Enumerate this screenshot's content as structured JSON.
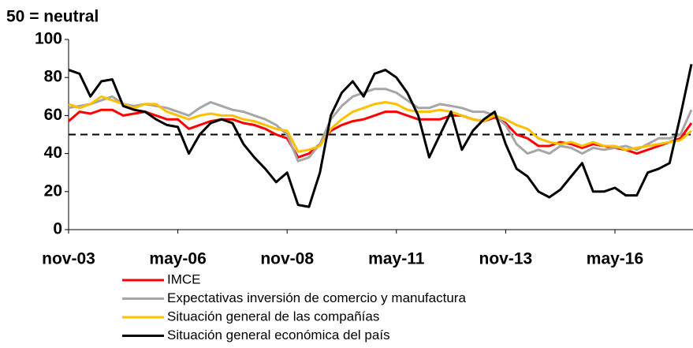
{
  "chart_data": {
    "type": "line",
    "title": "50 = neutral",
    "categories": [
      "nov-03",
      null,
      null,
      null,
      null,
      null,
      null,
      null,
      null,
      null,
      "may-06",
      null,
      null,
      null,
      null,
      null,
      null,
      null,
      null,
      null,
      "nov-08",
      null,
      null,
      null,
      null,
      null,
      null,
      null,
      null,
      null,
      "may-11",
      null,
      null,
      null,
      null,
      null,
      null,
      null,
      null,
      null,
      "nov-13",
      null,
      null,
      null,
      null,
      null,
      null,
      null,
      null,
      null,
      "may-16",
      null,
      null,
      null,
      null,
      null,
      null,
      null
    ],
    "series": [
      {
        "name": "IMCE",
        "color": "#ff0000",
        "values": [
          57,
          62,
          61,
          63,
          63,
          60,
          61,
          62,
          60,
          58,
          58,
          53,
          55,
          57,
          58,
          58,
          56,
          55,
          53,
          50,
          48,
          38,
          40,
          45,
          52,
          55,
          57,
          58,
          60,
          62,
          62,
          60,
          58,
          58,
          58,
          60,
          60,
          58,
          57,
          59,
          56,
          50,
          48,
          44,
          44,
          46,
          45,
          43,
          45,
          44,
          43,
          42,
          40,
          42,
          44,
          46,
          48,
          56
        ]
      },
      {
        "name": "Expectativas inversión de comercio y manufactura",
        "color": "#a6a6a6",
        "values": [
          64,
          65,
          66,
          68,
          70,
          66,
          65,
          66,
          65,
          64,
          62,
          60,
          64,
          67,
          65,
          63,
          62,
          60,
          58,
          55,
          50,
          36,
          38,
          45,
          58,
          65,
          70,
          72,
          74,
          74,
          72,
          68,
          64,
          64,
          66,
          65,
          64,
          62,
          62,
          60,
          55,
          45,
          40,
          42,
          40,
          44,
          43,
          40,
          43,
          42,
          43,
          44,
          42,
          45,
          48,
          48,
          50,
          63
        ]
      },
      {
        "name": "Situación general de las compañías",
        "color": "#ffc000",
        "values": [
          66,
          64,
          66,
          70,
          68,
          66,
          64,
          66,
          66,
          62,
          60,
          58,
          60,
          61,
          60,
          60,
          58,
          57,
          55,
          53,
          52,
          41,
          42,
          44,
          53,
          58,
          62,
          64,
          66,
          67,
          66,
          63,
          62,
          62,
          63,
          62,
          60,
          58,
          57,
          60,
          58,
          55,
          53,
          48,
          46,
          45,
          46,
          44,
          46,
          44,
          44,
          42,
          43,
          44,
          45,
          46,
          47,
          52
        ]
      },
      {
        "name": "Situación general económica del país",
        "color": "#000000",
        "values": [
          84,
          82,
          70,
          78,
          79,
          65,
          63,
          62,
          58,
          55,
          54,
          40,
          50,
          56,
          58,
          56,
          45,
          38,
          32,
          25,
          30,
          13,
          12,
          30,
          60,
          72,
          78,
          70,
          82,
          84,
          80,
          72,
          60,
          38,
          50,
          62,
          42,
          52,
          58,
          62,
          45,
          32,
          28,
          20,
          17,
          21,
          28,
          35,
          20,
          20,
          22,
          18,
          18,
          30,
          32,
          35,
          60,
          87
        ]
      }
    ],
    "reference_line": 50,
    "ylim": [
      0,
      100
    ],
    "yticks": [
      0,
      20,
      40,
      60,
      80,
      100
    ]
  }
}
